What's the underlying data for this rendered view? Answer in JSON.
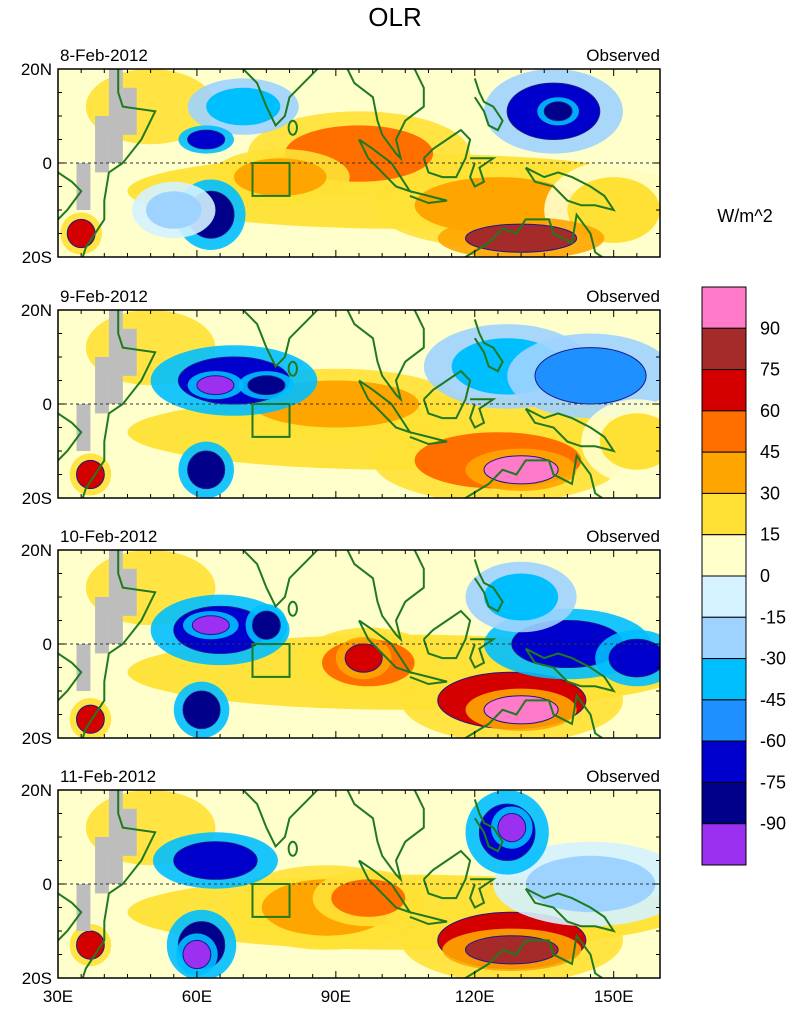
{
  "chart_data": {
    "type": "heatmap",
    "title": "OLR",
    "units": "W/m^2",
    "x_axis": {
      "range": [
        30,
        160
      ],
      "ticks": [
        30,
        60,
        90,
        120,
        150
      ],
      "tick_labels": [
        "30E",
        "60E",
        "90E",
        "120E",
        "150E"
      ]
    },
    "y_axis": {
      "range": [
        -20,
        20
      ],
      "ticks": [
        20,
        0,
        -20
      ],
      "tick_labels": [
        "20N",
        "0",
        "20S"
      ]
    },
    "colorbar": {
      "levels": [
        -90,
        -75,
        -60,
        -45,
        -30,
        -15,
        0,
        15,
        30,
        45,
        60,
        75,
        90
      ],
      "labels": [
        "90",
        "75",
        "60",
        "45",
        "30",
        "15",
        "0",
        "-15",
        "-30",
        "-45",
        "-60",
        "-75",
        "-90"
      ],
      "colors": [
        "#9B30F0",
        "#00008B",
        "#0000CD",
        "#1E90FF",
        "#00BFFF",
        "#9FD3FF",
        "#D4F2FF",
        "#FFFFCC",
        "#FFE135",
        "#FFA500",
        "#FF6F00",
        "#D40000",
        "#A52A2A",
        "#FF7AC8"
      ]
    },
    "box_region": {
      "lon": [
        72,
        80
      ],
      "lat": [
        -7,
        0
      ]
    },
    "panels": [
      {
        "date": "8-Feb-2012",
        "tag": "Observed",
        "features": [
          {
            "lon": 70,
            "lat": 12,
            "rx": 8,
            "ry": 4,
            "value": -40
          },
          {
            "lon": 62,
            "lat": 5,
            "rx": 4,
            "ry": 2,
            "value": -75
          },
          {
            "lon": 63,
            "lat": -11,
            "rx": 5,
            "ry": 5,
            "value": -80
          },
          {
            "lon": 55,
            "lat": -10,
            "rx": 6,
            "ry": 4,
            "value": -30
          },
          {
            "lon": 95,
            "lat": 2,
            "rx": 16,
            "ry": 6,
            "value": 45
          },
          {
            "lon": 78,
            "lat": -3,
            "rx": 10,
            "ry": 4,
            "value": 40
          },
          {
            "lon": 125,
            "lat": -9,
            "rx": 18,
            "ry": 6,
            "value": 40
          },
          {
            "lon": 130,
            "lat": -16,
            "rx": 12,
            "ry": 3,
            "value": 80
          },
          {
            "lon": 137,
            "lat": 11,
            "rx": 10,
            "ry": 6,
            "value": -65
          },
          {
            "lon": 138,
            "lat": 11,
            "rx": 3,
            "ry": 2,
            "value": -90
          },
          {
            "lon": 150,
            "lat": -10,
            "rx": 10,
            "ry": 7,
            "value": 15
          },
          {
            "lon": 35,
            "lat": -15,
            "rx": 3,
            "ry": 3,
            "value": 65
          }
        ]
      },
      {
        "date": "9-Feb-2012",
        "tag": "Observed",
        "features": [
          {
            "lon": 68,
            "lat": 5,
            "rx": 12,
            "ry": 5,
            "value": -75
          },
          {
            "lon": 64,
            "lat": 4,
            "rx": 4,
            "ry": 2,
            "value": -95
          },
          {
            "lon": 75,
            "lat": 4,
            "rx": 4,
            "ry": 2,
            "value": -90
          },
          {
            "lon": 62,
            "lat": -14,
            "rx": 4,
            "ry": 4,
            "value": -85
          },
          {
            "lon": 90,
            "lat": 0,
            "rx": 18,
            "ry": 5,
            "value": 40
          },
          {
            "lon": 125,
            "lat": -12,
            "rx": 18,
            "ry": 6,
            "value": 55
          },
          {
            "lon": 130,
            "lat": -14,
            "rx": 8,
            "ry": 3,
            "value": 95
          },
          {
            "lon": 127,
            "lat": 8,
            "rx": 12,
            "ry": 6,
            "value": -40
          },
          {
            "lon": 145,
            "lat": 6,
            "rx": 12,
            "ry": 6,
            "value": -60
          },
          {
            "lon": 155,
            "lat": -8,
            "rx": 8,
            "ry": 6,
            "value": 20
          },
          {
            "lon": 37,
            "lat": -15,
            "rx": 3,
            "ry": 3,
            "value": 65
          }
        ]
      },
      {
        "date": "10-Feb-2012",
        "tag": "Observed",
        "features": [
          {
            "lon": 65,
            "lat": 3,
            "rx": 10,
            "ry": 5,
            "value": -75
          },
          {
            "lon": 63,
            "lat": 4,
            "rx": 4,
            "ry": 2,
            "value": -95
          },
          {
            "lon": 75,
            "lat": 4,
            "rx": 3,
            "ry": 3,
            "value": -85
          },
          {
            "lon": 61,
            "lat": -14,
            "rx": 4,
            "ry": 4,
            "value": -90
          },
          {
            "lon": 97,
            "lat": -4,
            "rx": 10,
            "ry": 5,
            "value": 55
          },
          {
            "lon": 96,
            "lat": -3,
            "rx": 4,
            "ry": 3,
            "value": 70
          },
          {
            "lon": 128,
            "lat": -12,
            "rx": 16,
            "ry": 6,
            "value": 60
          },
          {
            "lon": 130,
            "lat": -14,
            "rx": 8,
            "ry": 3,
            "value": 95
          },
          {
            "lon": 130,
            "lat": 10,
            "rx": 8,
            "ry": 5,
            "value": -45
          },
          {
            "lon": 140,
            "lat": 0,
            "rx": 12,
            "ry": 5,
            "value": -70
          },
          {
            "lon": 155,
            "lat": -3,
            "rx": 6,
            "ry": 4,
            "value": -75
          },
          {
            "lon": 37,
            "lat": -16,
            "rx": 3,
            "ry": 3,
            "value": 65
          }
        ]
      },
      {
        "date": "11-Feb-2012",
        "tag": "Observed",
        "features": [
          {
            "lon": 64,
            "lat": 5,
            "rx": 9,
            "ry": 4,
            "value": -75
          },
          {
            "lon": 61,
            "lat": -13,
            "rx": 5,
            "ry": 5,
            "value": -80
          },
          {
            "lon": 60,
            "lat": -15,
            "rx": 3,
            "ry": 3,
            "value": -95
          },
          {
            "lon": 97,
            "lat": -3,
            "rx": 8,
            "ry": 4,
            "value": 55
          },
          {
            "lon": 88,
            "lat": -5,
            "rx": 14,
            "ry": 6,
            "value": 35
          },
          {
            "lon": 128,
            "lat": -12,
            "rx": 16,
            "ry": 6,
            "value": 60
          },
          {
            "lon": 128,
            "lat": -14,
            "rx": 10,
            "ry": 3,
            "value": 80
          },
          {
            "lon": 127,
            "lat": 11,
            "rx": 6,
            "ry": 6,
            "value": -75
          },
          {
            "lon": 128,
            "lat": 12,
            "rx": 3,
            "ry": 3,
            "value": -95
          },
          {
            "lon": 145,
            "lat": 0,
            "rx": 14,
            "ry": 6,
            "value": -20
          },
          {
            "lon": 37,
            "lat": -13,
            "rx": 3,
            "ry": 3,
            "value": 60
          }
        ]
      }
    ]
  }
}
